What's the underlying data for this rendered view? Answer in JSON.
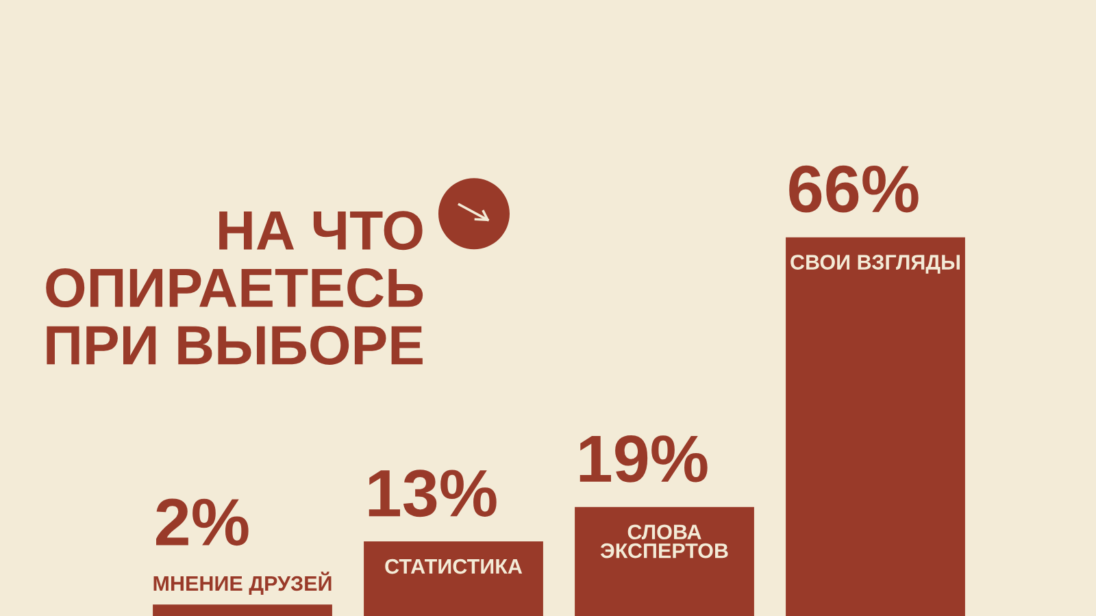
{
  "chart_data": {
    "type": "bar",
    "title": "НА ЧТО\nОПИРАЕТЕСЬ\nПРИ ВЫБОРЕ",
    "categories": [
      "МНЕНИЕ ДРУЗЕЙ",
      "СТАТИСТИКА",
      "СЛОВА ЭКСПЕРТОВ",
      "СВОИ ВЗГЛЯДЫ"
    ],
    "values": [
      2,
      13,
      19,
      66
    ],
    "value_labels": [
      "2%",
      "13%",
      "19%",
      "66%"
    ],
    "color": "#993a29"
  }
}
